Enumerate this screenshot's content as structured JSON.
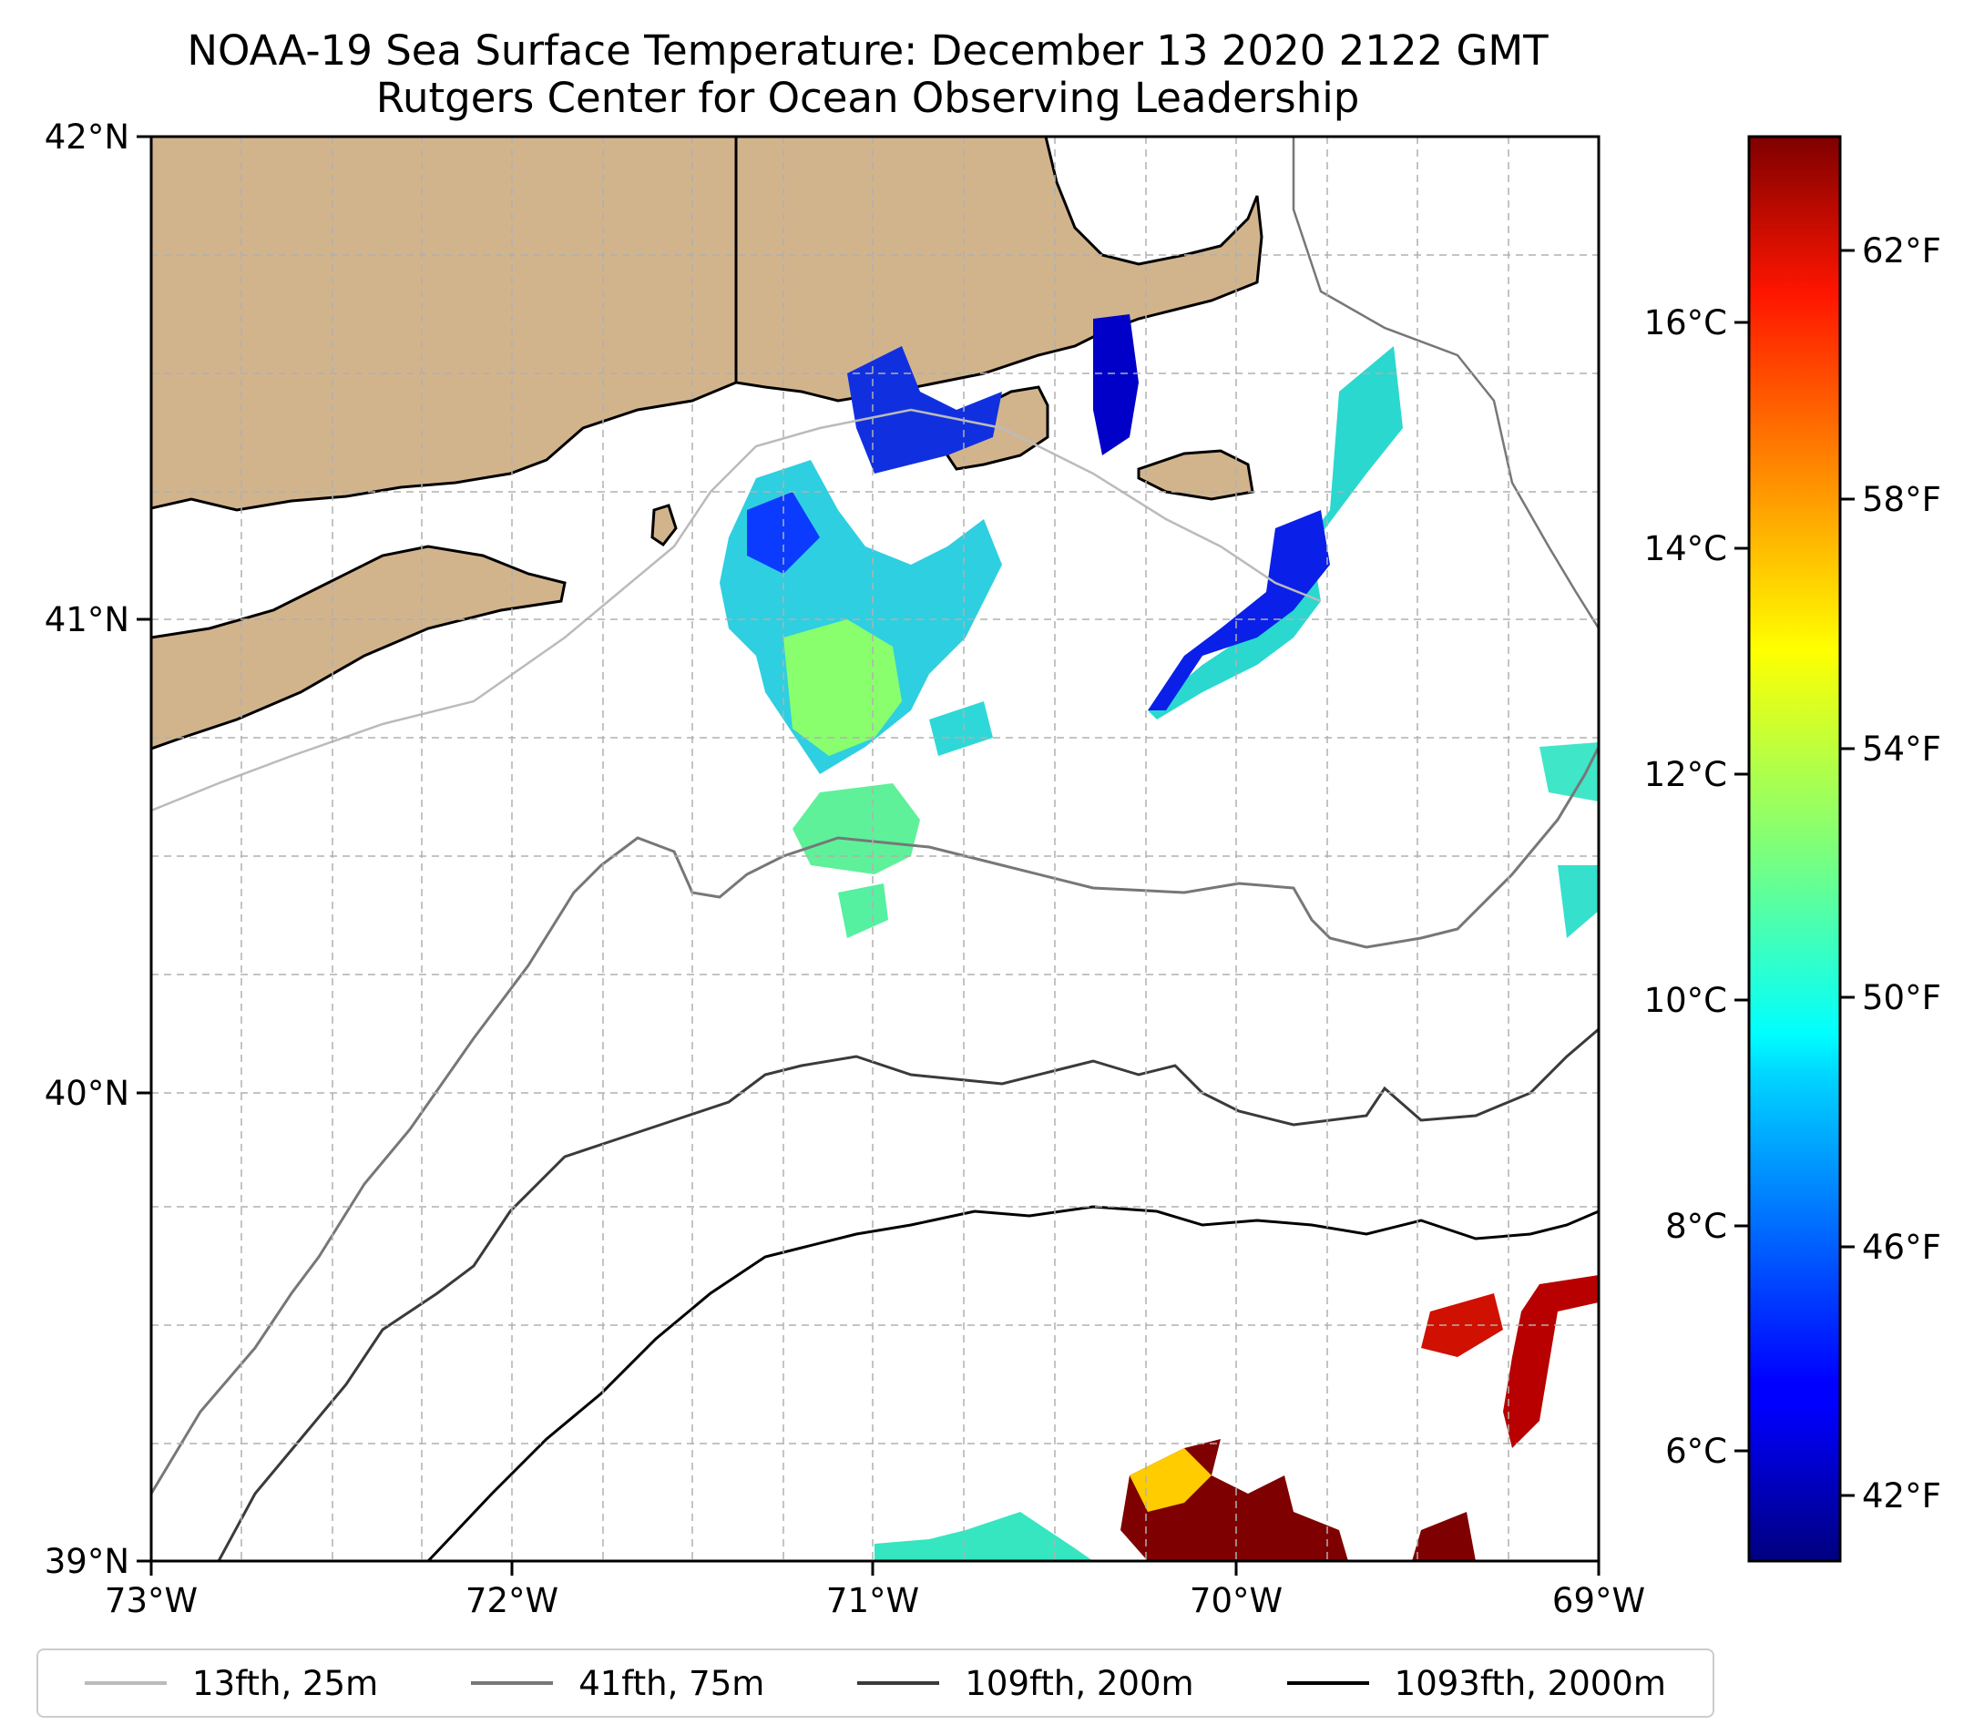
{
  "title": {
    "line1": "NOAA-19 Sea Surface Temperature: December 13 2020 2122 GMT",
    "line2": "Rutgers Center for Ocean Observing Leadership"
  },
  "axes": {
    "lat_labels": [
      "42°N",
      "41°N",
      "40°N",
      "39°N"
    ],
    "lon_labels": [
      "73°W",
      "72°W",
      "71°W",
      "70°W",
      "69°W"
    ],
    "lat_range": [
      39,
      42
    ],
    "lon_range": [
      -73,
      -69
    ]
  },
  "colorbar": {
    "colormap": "jet",
    "range_f": [
      41,
      64.4
    ],
    "celsius_ticks": [
      "16°C",
      "14°C",
      "12°C",
      "10°C",
      "8°C",
      "6°C"
    ],
    "fahrenheit_ticks": [
      "62°F",
      "58°F",
      "54°F",
      "50°F",
      "46°F",
      "42°F"
    ]
  },
  "legend": [
    {
      "label": "13fth, 25m",
      "color": "#bbbbbb"
    },
    {
      "label": "41fth, 75m",
      "color": "#777777"
    },
    {
      "label": "109fth, 200m",
      "color": "#3a3a3a"
    },
    {
      "label": "1093fth, 2000m",
      "color": "#000000"
    }
  ],
  "colors": {
    "land": "#d2b48c",
    "grid": "#b0b0b0"
  }
}
